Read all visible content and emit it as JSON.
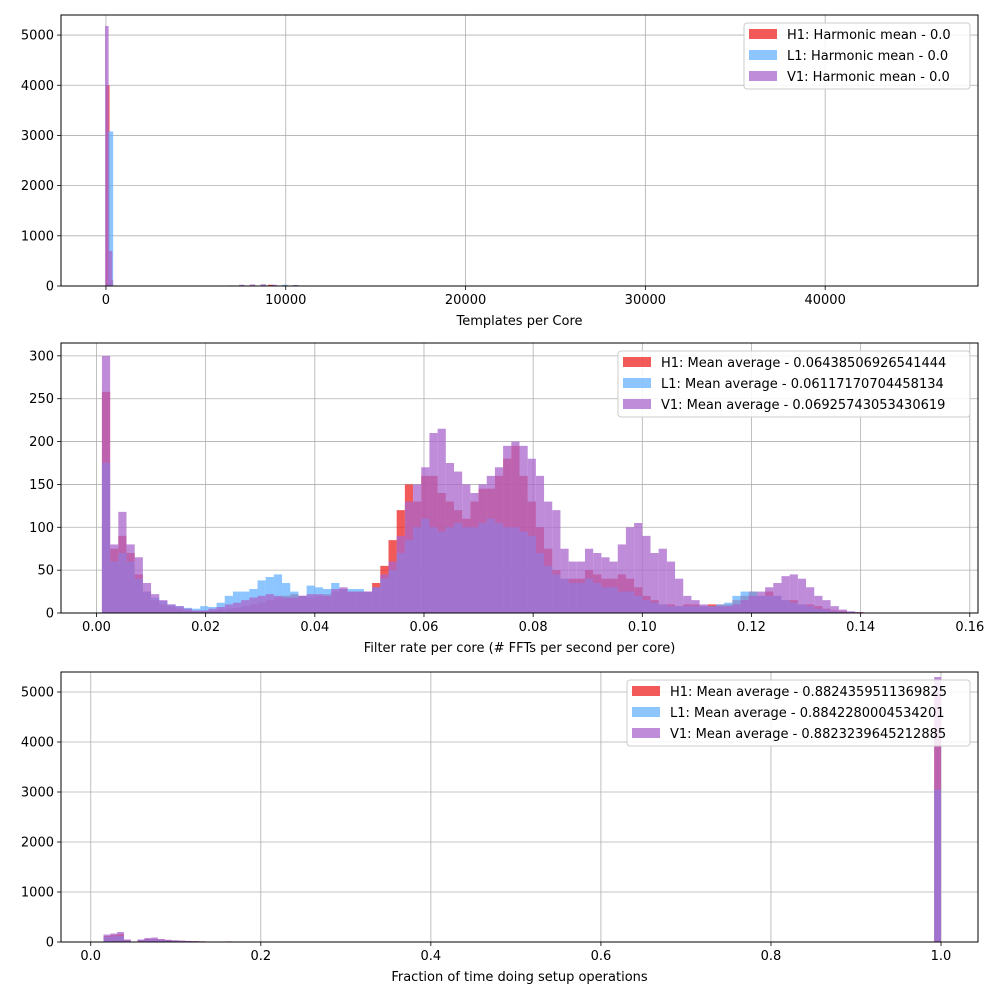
{
  "chart_data": [
    {
      "type": "bar",
      "subtype": "histogram",
      "title": "",
      "xlabel": "Templates per Core",
      "ylabel": "",
      "xlim": [
        -2500,
        48500
      ],
      "ylim": [
        0,
        5400
      ],
      "xticks": [
        0,
        10000,
        20000,
        30000,
        40000
      ],
      "yticks": [
        0,
        1000,
        2000,
        3000,
        4000,
        5000
      ],
      "grid": true,
      "legend": "top-right",
      "series": [
        {
          "name": "H1: Harmonic mean  - 0.0",
          "color": "#ee2222",
          "bins": [
            [
              0,
              200,
              4000
            ],
            [
              200,
              400,
              120
            ],
            [
              9000,
              9300,
              25
            ],
            [
              11000,
              11300,
              10
            ]
          ]
        },
        {
          "name": "L1: Harmonic mean  - 0.0",
          "color": "#66b2ff",
          "bins": [
            [
              100,
              400,
              3080
            ],
            [
              2500,
              2800,
              10
            ],
            [
              9800,
              10100,
              25
            ],
            [
              14800,
              15100,
              10
            ]
          ]
        },
        {
          "name": "V1: Harmonic mean  - 0.0",
          "color": "#aa66cc",
          "bins": [
            [
              -50,
              150,
              5180
            ],
            [
              150,
              350,
              700
            ],
            [
              6800,
              7100,
              12
            ],
            [
              7400,
              7700,
              25
            ],
            [
              8000,
              8300,
              30
            ],
            [
              8600,
              8900,
              35
            ],
            [
              9200,
              9500,
              25
            ],
            [
              10400,
              10700,
              20
            ],
            [
              11300,
              11600,
              10
            ],
            [
              13800,
              14100,
              10
            ]
          ]
        }
      ]
    },
    {
      "type": "bar",
      "subtype": "histogram",
      "title": "",
      "xlabel": "Filter rate per core (# FFTs per second per core)",
      "ylabel": "",
      "xlim": [
        -0.0065,
        0.1615
      ],
      "ylim": [
        0,
        315
      ],
      "xticks": [
        0.0,
        0.02,
        0.04,
        0.06,
        0.08,
        0.1,
        0.12,
        0.14,
        0.16
      ],
      "yticks": [
        0,
        50,
        100,
        150,
        200,
        250,
        300
      ],
      "grid": true,
      "legend": "top-right",
      "bin_start": 0.001,
      "bin_width": 0.0015,
      "series": [
        {
          "name": "H1: Mean average - 0.06438506926541444",
          "color": "#ee2222",
          "values": [
            258,
            75,
            90,
            70,
            45,
            25,
            15,
            10,
            8,
            5,
            3,
            2,
            2,
            3,
            4,
            5,
            6,
            8,
            10,
            12,
            15,
            18,
            20,
            22,
            20,
            18,
            20,
            22,
            25,
            28,
            25,
            25,
            25,
            35,
            55,
            85,
            120,
            150,
            130,
            160,
            160,
            140,
            130,
            120,
            110,
            130,
            145,
            145,
            160,
            180,
            195,
            160,
            130,
            100,
            75,
            50,
            40,
            40,
            40,
            50,
            45,
            40,
            40,
            45,
            40,
            30,
            20,
            15,
            10,
            10,
            8,
            10,
            10,
            8,
            10,
            10,
            10,
            15,
            20,
            25,
            20,
            25,
            20,
            15,
            15,
            10,
            10,
            8,
            5,
            3,
            2,
            1,
            1,
            0,
            0,
            0,
            0,
            0,
            0,
            0,
            0,
            0,
            0
          ]
        },
        {
          "name": "L1: Mean average - 0.06117170704458134",
          "color": "#66b2ff",
          "values": [
            175,
            60,
            70,
            60,
            40,
            25,
            18,
            14,
            10,
            8,
            6,
            5,
            8,
            7,
            12,
            20,
            25,
            25,
            28,
            38,
            42,
            45,
            35,
            25,
            20,
            32,
            30,
            28,
            35,
            28,
            28,
            28,
            25,
            30,
            40,
            50,
            70,
            85,
            100,
            110,
            100,
            95,
            100,
            105,
            100,
            100,
            105,
            110,
            105,
            100,
            100,
            95,
            90,
            70,
            55,
            45,
            40,
            35,
            35,
            40,
            35,
            30,
            30,
            25,
            25,
            20,
            15,
            12,
            10,
            8,
            8,
            8,
            8,
            8,
            8,
            10,
            12,
            20,
            25,
            25,
            20,
            20,
            20,
            15,
            12,
            10,
            8,
            5,
            4,
            2,
            1,
            1,
            0,
            0,
            0,
            0,
            0,
            0,
            0,
            0,
            0,
            0,
            0
          ]
        },
        {
          "name": "V1: Mean average - 0.06925743053430619",
          "color": "#aa66cc",
          "values": [
            300,
            80,
            118,
            80,
            65,
            35,
            22,
            15,
            10,
            8,
            5,
            3,
            3,
            5,
            7,
            10,
            12,
            15,
            18,
            20,
            22,
            20,
            18,
            18,
            20,
            22,
            22,
            20,
            28,
            30,
            25,
            25,
            25,
            30,
            45,
            60,
            90,
            130,
            150,
            170,
            210,
            215,
            175,
            165,
            150,
            140,
            150,
            160,
            170,
            195,
            200,
            195,
            180,
            160,
            130,
            120,
            75,
            60,
            60,
            75,
            70,
            65,
            60,
            80,
            100,
            105,
            90,
            70,
            75,
            60,
            40,
            20,
            15,
            10,
            8,
            8,
            8,
            10,
            15,
            20,
            25,
            30,
            35,
            43,
            45,
            40,
            30,
            20,
            15,
            8,
            4,
            2,
            1,
            0,
            0,
            0,
            0,
            0,
            0,
            0,
            0,
            0
          ]
        }
      ]
    },
    {
      "type": "bar",
      "subtype": "histogram",
      "title": "",
      "xlabel": "Fraction of time doing setup operations",
      "ylabel": "",
      "xlim": [
        -0.035,
        1.0435
      ],
      "ylim": [
        0,
        5400
      ],
      "xticks": [
        0.0,
        0.2,
        0.4,
        0.6,
        0.8,
        1.0
      ],
      "yticks": [
        0,
        1000,
        2000,
        3000,
        4000,
        5000
      ],
      "grid": true,
      "legend": "top-right",
      "bin_width": 0.008,
      "series": [
        {
          "name": "H1: Mean average - 0.8824359511369825",
          "color": "#ee2222",
          "bins": [
            [
              0.015,
              120
            ],
            [
              0.023,
              140
            ],
            [
              0.031,
              160
            ],
            [
              0.039,
              40
            ],
            [
              0.055,
              40
            ],
            [
              0.063,
              60
            ],
            [
              0.071,
              60
            ],
            [
              0.079,
              50
            ],
            [
              0.087,
              40
            ],
            [
              0.095,
              30
            ],
            [
              0.103,
              25
            ],
            [
              0.111,
              20
            ],
            [
              0.119,
              15
            ],
            [
              0.127,
              12
            ],
            [
              0.135,
              10
            ],
            [
              0.143,
              8
            ],
            [
              0.159,
              12
            ],
            [
              0.992,
              5000
            ]
          ]
        },
        {
          "name": "L1: Mean average - 0.8842280004534201",
          "color": "#66b2ff",
          "bins": [
            [
              0.015,
              100
            ],
            [
              0.023,
              110
            ],
            [
              0.031,
              120
            ],
            [
              0.039,
              30
            ],
            [
              0.055,
              35
            ],
            [
              0.063,
              50
            ],
            [
              0.071,
              50
            ],
            [
              0.079,
              40
            ],
            [
              0.087,
              30
            ],
            [
              0.095,
              25
            ],
            [
              0.103,
              20
            ],
            [
              0.111,
              15
            ],
            [
              0.119,
              12
            ],
            [
              0.127,
              10
            ],
            [
              0.135,
              8
            ],
            [
              0.992,
              3050
            ]
          ]
        },
        {
          "name": "V1: Mean average - 0.8823239645212885",
          "color": "#aa66cc",
          "bins": [
            [
              0.015,
              150
            ],
            [
              0.023,
              170
            ],
            [
              0.031,
              200
            ],
            [
              0.039,
              50
            ],
            [
              0.055,
              50
            ],
            [
              0.063,
              80
            ],
            [
              0.071,
              90
            ],
            [
              0.079,
              60
            ],
            [
              0.087,
              45
            ],
            [
              0.095,
              35
            ],
            [
              0.103,
              28
            ],
            [
              0.111,
              22
            ],
            [
              0.119,
              18
            ],
            [
              0.127,
              14
            ],
            [
              0.135,
              10
            ],
            [
              0.143,
              8
            ],
            [
              0.992,
              5300
            ]
          ]
        }
      ]
    }
  ]
}
